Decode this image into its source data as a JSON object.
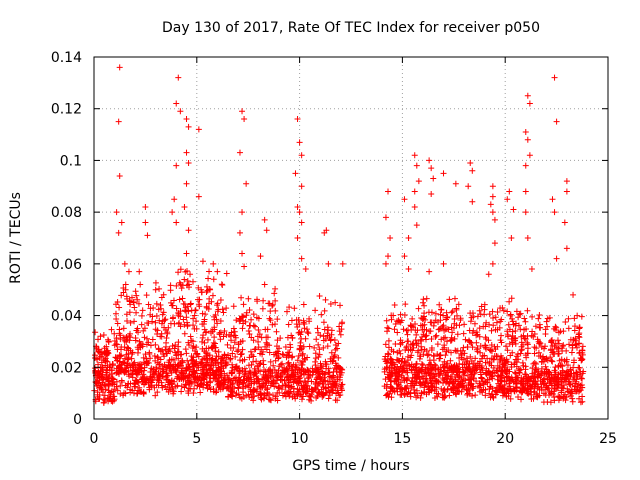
{
  "chart_data": {
    "type": "scatter",
    "title": "Day 130 of 2017, Rate Of TEC Index for receiver p050",
    "xlabel": "GPS time / hours",
    "ylabel": "ROTI / TECUs",
    "xlim": [
      0,
      25
    ],
    "ylim": [
      0,
      0.14
    ],
    "x_ticks": [
      0,
      5,
      10,
      15,
      20,
      25
    ],
    "y_ticks": [
      0,
      0.02,
      0.04,
      0.06,
      0.08,
      0.1,
      0.12,
      0.14
    ],
    "x_tick_labels": [
      "0",
      "5",
      "10",
      "15",
      "20",
      "25"
    ],
    "y_tick_labels": [
      "0",
      "0.02",
      "0.04",
      "0.06",
      "0.08",
      "0.1",
      "0.12",
      "0.14"
    ],
    "grid": true,
    "marker": "+",
    "color": "#ff0000",
    "data_gap_hours": [
      12.1,
      14.1
    ],
    "series": [
      {
        "name": "ROTI",
        "points": [
          [
            1.25,
            0.136
          ],
          [
            1.2,
            0.115
          ],
          [
            1.25,
            0.094
          ],
          [
            1.1,
            0.08
          ],
          [
            1.35,
            0.076
          ],
          [
            1.2,
            0.072
          ],
          [
            1.5,
            0.06
          ],
          [
            1.7,
            0.057
          ],
          [
            2.5,
            0.082
          ],
          [
            2.5,
            0.076
          ],
          [
            2.6,
            0.071
          ],
          [
            2.2,
            0.057
          ],
          [
            3.0,
            0.05
          ],
          [
            3.3,
            0.047
          ],
          [
            4.1,
            0.132
          ],
          [
            4.0,
            0.122
          ],
          [
            4.2,
            0.119
          ],
          [
            4.0,
            0.098
          ],
          [
            3.9,
            0.085
          ],
          [
            3.8,
            0.08
          ],
          [
            4.0,
            0.076
          ],
          [
            4.5,
            0.116
          ],
          [
            4.6,
            0.113
          ],
          [
            4.5,
            0.103
          ],
          [
            4.6,
            0.099
          ],
          [
            4.5,
            0.091
          ],
          [
            4.4,
            0.082
          ],
          [
            4.6,
            0.073
          ],
          [
            4.5,
            0.064
          ],
          [
            5.1,
            0.112
          ],
          [
            5.1,
            0.086
          ],
          [
            5.3,
            0.061
          ],
          [
            5.8,
            0.06
          ],
          [
            6.0,
            0.057
          ],
          [
            7.2,
            0.119
          ],
          [
            7.3,
            0.116
          ],
          [
            7.1,
            0.103
          ],
          [
            7.4,
            0.091
          ],
          [
            7.2,
            0.08
          ],
          [
            7.1,
            0.072
          ],
          [
            7.2,
            0.064
          ],
          [
            7.3,
            0.059
          ],
          [
            8.3,
            0.077
          ],
          [
            8.4,
            0.073
          ],
          [
            8.1,
            0.063
          ],
          [
            8.3,
            0.052
          ],
          [
            9.9,
            0.116
          ],
          [
            10.0,
            0.107
          ],
          [
            10.1,
            0.102
          ],
          [
            9.8,
            0.095
          ],
          [
            10.1,
            0.09
          ],
          [
            9.9,
            0.082
          ],
          [
            10.0,
            0.08
          ],
          [
            10.1,
            0.076
          ],
          [
            9.9,
            0.07
          ],
          [
            10.1,
            0.062
          ],
          [
            10.3,
            0.058
          ],
          [
            11.2,
            0.072
          ],
          [
            11.3,
            0.073
          ],
          [
            11.4,
            0.06
          ],
          [
            12.1,
            0.06
          ],
          [
            14.3,
            0.088
          ],
          [
            14.2,
            0.078
          ],
          [
            14.4,
            0.07
          ],
          [
            14.3,
            0.063
          ],
          [
            14.2,
            0.06
          ],
          [
            15.1,
            0.085
          ],
          [
            15.3,
            0.07
          ],
          [
            15.1,
            0.063
          ],
          [
            15.3,
            0.058
          ],
          [
            15.6,
            0.102
          ],
          [
            15.7,
            0.098
          ],
          [
            15.8,
            0.092
          ],
          [
            15.6,
            0.088
          ],
          [
            15.6,
            0.082
          ],
          [
            15.7,
            0.075
          ],
          [
            16.3,
            0.1
          ],
          [
            16.4,
            0.097
          ],
          [
            16.5,
            0.093
          ],
          [
            16.4,
            0.087
          ],
          [
            16.3,
            0.057
          ],
          [
            17.0,
            0.095
          ],
          [
            17.0,
            0.06
          ],
          [
            17.6,
            0.091
          ],
          [
            18.3,
            0.099
          ],
          [
            18.4,
            0.096
          ],
          [
            18.2,
            0.09
          ],
          [
            18.4,
            0.084
          ],
          [
            19.2,
            0.056
          ],
          [
            19.4,
            0.09
          ],
          [
            19.4,
            0.086
          ],
          [
            19.3,
            0.083
          ],
          [
            19.4,
            0.08
          ],
          [
            19.5,
            0.077
          ],
          [
            19.5,
            0.068
          ],
          [
            19.4,
            0.06
          ],
          [
            20.2,
            0.088
          ],
          [
            20.1,
            0.085
          ],
          [
            20.4,
            0.081
          ],
          [
            20.3,
            0.07
          ],
          [
            21.1,
            0.125
          ],
          [
            21.2,
            0.122
          ],
          [
            21.0,
            0.111
          ],
          [
            21.1,
            0.108
          ],
          [
            21.2,
            0.102
          ],
          [
            21.0,
            0.098
          ],
          [
            21.0,
            0.088
          ],
          [
            21.0,
            0.08
          ],
          [
            21.1,
            0.07
          ],
          [
            21.3,
            0.058
          ],
          [
            22.4,
            0.132
          ],
          [
            22.5,
            0.115
          ],
          [
            22.3,
            0.085
          ],
          [
            22.4,
            0.08
          ],
          [
            22.5,
            0.062
          ],
          [
            23.0,
            0.092
          ],
          [
            23.0,
            0.088
          ],
          [
            22.9,
            0.076
          ],
          [
            23.0,
            0.066
          ],
          [
            23.3,
            0.048
          ],
          [
            23.5,
            0.04
          ],
          [
            23.6,
            0.035
          ]
        ],
        "bands": [
          {
            "x": [
              0.0,
              1.0
            ],
            "base": 0.012,
            "spread": 0.02,
            "density": 160
          },
          {
            "x": [
              1.0,
              4.0
            ],
            "base": 0.015,
            "spread": 0.035,
            "density": 420
          },
          {
            "x": [
              4.0,
              6.5
            ],
            "base": 0.016,
            "spread": 0.04,
            "density": 420
          },
          {
            "x": [
              6.5,
              9.0
            ],
            "base": 0.013,
            "spread": 0.032,
            "density": 340
          },
          {
            "x": [
              9.0,
              12.1
            ],
            "base": 0.013,
            "spread": 0.03,
            "density": 420
          },
          {
            "x": [
              14.1,
              16.5
            ],
            "base": 0.014,
            "spread": 0.03,
            "density": 360
          },
          {
            "x": [
              16.5,
              19.5
            ],
            "base": 0.014,
            "spread": 0.03,
            "density": 420
          },
          {
            "x": [
              19.5,
              21.5
            ],
            "base": 0.013,
            "spread": 0.03,
            "density": 300
          },
          {
            "x": [
              21.5,
              23.8
            ],
            "base": 0.012,
            "spread": 0.025,
            "density": 320
          }
        ]
      }
    ]
  }
}
